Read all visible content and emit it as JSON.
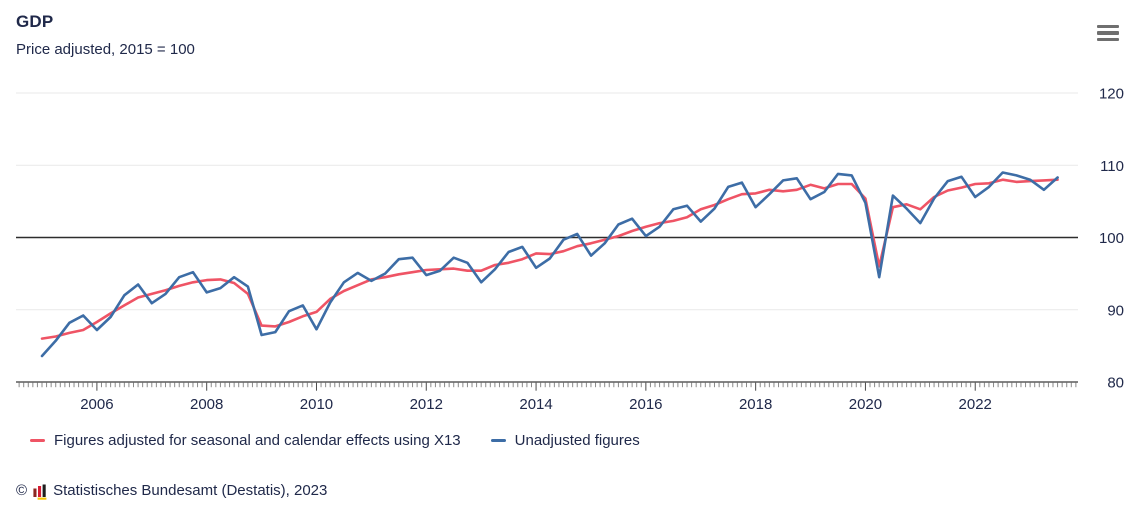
{
  "header": {
    "title": "GDP",
    "subtitle": "Price adjusted, 2015 = 100"
  },
  "icons": {
    "menu": "hamburger-menu-icon",
    "source_logo": "destatis-bar-chart-logo-icon"
  },
  "legend": {
    "items": [
      {
        "label": "Figures adjusted for seasonal and calendar effects using X13",
        "color": "#ef5465"
      },
      {
        "label": "Unadjusted figures",
        "color": "#3d6da6"
      }
    ]
  },
  "footer": {
    "copyright": "©",
    "source": "Statistisches Bundesamt (Destatis), 2023"
  },
  "colors": {
    "text": "#20294a",
    "grid": "#e9e9e9",
    "reference_line": "#2d2d2d",
    "axis": "#3a3a3a",
    "adjusted_series": "#ef5465",
    "unadjusted_series": "#3d6da6"
  },
  "chart_data": {
    "type": "line",
    "title": "GDP",
    "subtitle": "Price adjusted, 2015 = 100",
    "x_unit": "quarter",
    "x_start": "2005-Q1",
    "x_end": "2023-Q3",
    "x_tick_labels": [
      "2006",
      "2008",
      "2010",
      "2012",
      "2014",
      "2016",
      "2018",
      "2020",
      "2022"
    ],
    "ylim": [
      80,
      120
    ],
    "y_ticks": [
      80,
      90,
      100,
      110,
      120
    ],
    "reference_line": 100,
    "grid": "horizontal",
    "legend_position": "bottom",
    "series": [
      {
        "name": "Figures adjusted for seasonal and calendar effects using X13",
        "color": "#ef5465",
        "values": [
          86.0,
          86.3,
          86.8,
          87.2,
          88.3,
          89.5,
          90.6,
          91.7,
          92.2,
          92.7,
          93.3,
          93.8,
          94.1,
          94.2,
          93.7,
          92.2,
          87.8,
          87.7,
          88.3,
          89.1,
          89.7,
          91.5,
          92.6,
          93.4,
          94.2,
          94.5,
          94.9,
          95.2,
          95.5,
          95.6,
          95.7,
          95.4,
          95.4,
          96.2,
          96.5,
          97.0,
          97.8,
          97.7,
          98.1,
          98.8,
          99.2,
          99.7,
          100.2,
          100.9,
          101.5,
          102.0,
          102.3,
          102.8,
          103.9,
          104.5,
          105.3,
          106.0,
          106.1,
          106.6,
          106.4,
          106.6,
          107.3,
          106.8,
          107.4,
          107.4,
          105.4,
          96.0,
          104.2,
          104.6,
          103.9,
          105.6,
          106.5,
          106.9,
          107.4,
          107.5,
          108.0,
          107.7,
          107.8,
          107.9,
          108.0
        ]
      },
      {
        "name": "Unadjusted figures",
        "color": "#3d6da6",
        "values": [
          83.6,
          85.7,
          88.2,
          89.2,
          87.2,
          89.0,
          92.0,
          93.5,
          90.9,
          92.2,
          94.5,
          95.2,
          92.4,
          93.0,
          94.5,
          93.2,
          86.5,
          86.9,
          89.8,
          90.6,
          87.3,
          91.0,
          93.8,
          95.1,
          94.0,
          95.0,
          97.0,
          97.2,
          94.8,
          95.4,
          97.2,
          96.5,
          93.8,
          95.6,
          98.0,
          98.7,
          95.8,
          97.1,
          99.7,
          100.5,
          97.5,
          99.2,
          101.8,
          102.6,
          100.2,
          101.5,
          103.9,
          104.4,
          102.2,
          104.0,
          107.0,
          107.6,
          104.2,
          106.0,
          107.9,
          108.2,
          105.3,
          106.3,
          108.8,
          108.6,
          104.8,
          94.5,
          105.8,
          104.0,
          102.0,
          105.4,
          107.8,
          108.4,
          105.6,
          107.0,
          109.0,
          108.6,
          108.0,
          106.6,
          108.3
        ]
      }
    ]
  }
}
